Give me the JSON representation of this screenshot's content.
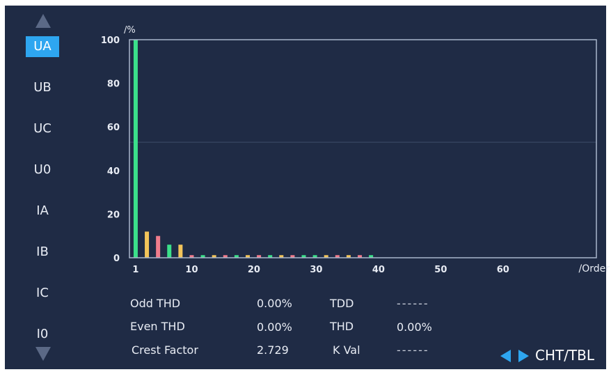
{
  "sidebar": {
    "items": [
      {
        "label": "UA",
        "active": true
      },
      {
        "label": "UB",
        "active": false
      },
      {
        "label": "UC",
        "active": false
      },
      {
        "label": "U0",
        "active": false
      },
      {
        "label": "IA",
        "active": false
      },
      {
        "label": "IB",
        "active": false
      },
      {
        "label": "IC",
        "active": false
      },
      {
        "label": "I0",
        "active": false
      }
    ]
  },
  "colors": {
    "background": "#1f2b45",
    "active_item": "#2ea6f0",
    "plot_border": "#a9b6cc",
    "odd": "#3be08a",
    "even": "#f2c45a",
    "triplen": "#f07c8c"
  },
  "chart_data": {
    "type": "bar",
    "ylabel": "/%",
    "xlabel": "/Order",
    "ylim": [
      0,
      100
    ],
    "xlim": [
      0,
      75
    ],
    "y_ticks": [
      "100",
      "80",
      "60",
      "40",
      "20",
      "0"
    ],
    "x_ticks": [
      "1",
      "10",
      "20",
      "30",
      "40",
      "50",
      "60"
    ],
    "x_tick_values": [
      1,
      10,
      20,
      30,
      40,
      50,
      60
    ],
    "y_tick_values": [
      100,
      80,
      60,
      40,
      20,
      0
    ],
    "reference_line": 53,
    "series": [
      {
        "order": 1,
        "value": 100,
        "color": "#3be08a"
      },
      {
        "order": 2,
        "value": 12,
        "color": "#f2c45a"
      },
      {
        "order": 3,
        "value": 10,
        "color": "#f07c8c"
      },
      {
        "order": 4,
        "value": 6,
        "color": "#3be08a"
      },
      {
        "order": 5,
        "value": 6,
        "color": "#f2c45a"
      },
      {
        "order": 6,
        "value": 1.2,
        "color": "#f07c8c"
      },
      {
        "order": 7,
        "value": 1.2,
        "color": "#3be08a"
      },
      {
        "order": 8,
        "value": 1.2,
        "color": "#f2c45a"
      },
      {
        "order": 9,
        "value": 1.2,
        "color": "#f07c8c"
      },
      {
        "order": 10,
        "value": 1.2,
        "color": "#3be08a"
      },
      {
        "order": 11,
        "value": 1.2,
        "color": "#f2c45a"
      },
      {
        "order": 12,
        "value": 1.2,
        "color": "#f07c8c"
      },
      {
        "order": 13,
        "value": 1.2,
        "color": "#3be08a"
      },
      {
        "order": 14,
        "value": 1.2,
        "color": "#f2c45a"
      },
      {
        "order": 15,
        "value": 1.2,
        "color": "#f07c8c"
      },
      {
        "order": 16,
        "value": 1.2,
        "color": "#3be08a"
      },
      {
        "order": 17,
        "value": 1.2,
        "color": "#3be08a"
      },
      {
        "order": 18,
        "value": 1.2,
        "color": "#f2c45a"
      },
      {
        "order": 19,
        "value": 1.2,
        "color": "#f07c8c"
      },
      {
        "order": 20,
        "value": 1.2,
        "color": "#f2c45a"
      },
      {
        "order": 21,
        "value": 1.2,
        "color": "#f07c8c"
      },
      {
        "order": 22,
        "value": 1.2,
        "color": "#3be08a"
      }
    ]
  },
  "stats": {
    "odd_thd_label": "Odd THD",
    "odd_thd_value": "0.00%",
    "tdd_label": "TDD",
    "tdd_value": "------",
    "even_thd_label": "Even THD",
    "even_thd_value": "0.00%",
    "thd_label": "THD",
    "thd_value": "0.00%",
    "crest_label": "Crest Factor",
    "crest_value": "2.729",
    "kval_label": "K Val",
    "kval_value": "------"
  },
  "nav": {
    "label": "CHT/TBL"
  }
}
